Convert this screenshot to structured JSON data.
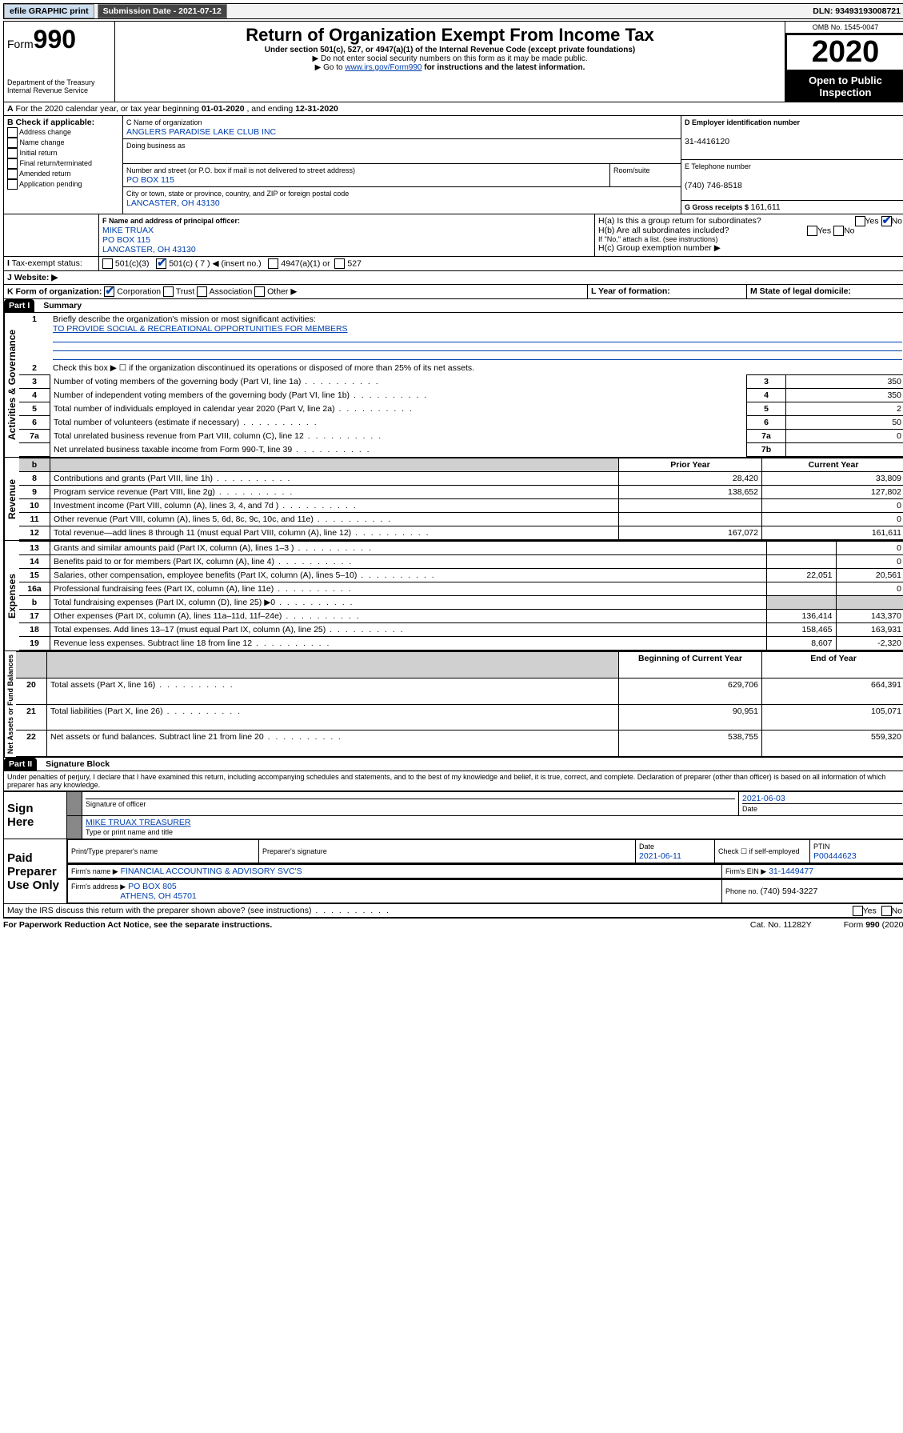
{
  "top": {
    "efile": "efile GRAPHIC print",
    "submission_label": "Submission Date - ",
    "submission_date": "2021-07-12",
    "dln_label": "DLN: ",
    "dln": "93493193008721"
  },
  "header": {
    "form_label": "Form",
    "form_number": "990",
    "dept": "Department of the Treasury\nInternal Revenue Service",
    "title": "Return of Organization Exempt From Income Tax",
    "sub1": "Under section 501(c), 527, or 4947(a)(1) of the Internal Revenue Code (except private foundations)",
    "sub2": "▶ Do not enter social security numbers on this form as it may be made public.",
    "sub3_pre": "▶ Go to ",
    "sub3_link": "www.irs.gov/Form990",
    "sub3_post": " for instructions and the latest information.",
    "omb_label": "OMB No. 1545-0047",
    "year": "2020",
    "open_public": "Open to Public Inspection"
  },
  "A": {
    "text_pre": "For the 2020 calendar year, or tax year beginning ",
    "begin": "01-01-2020",
    "mid": " , and ending ",
    "end": "12-31-2020"
  },
  "B": {
    "label": "B Check if applicable:",
    "items": [
      "Address change",
      "Name change",
      "Initial return",
      "Final return/terminated",
      "Amended return",
      "Application pending"
    ]
  },
  "C": {
    "name_label": "C Name of organization",
    "name": "ANGLERS PARADISE LAKE CLUB INC",
    "dba_label": "Doing business as",
    "street_label": "Number and street (or P.O. box if mail is not delivered to street address)",
    "room_label": "Room/suite",
    "street": "PO BOX 115",
    "city_label": "City or town, state or province, country, and ZIP or foreign postal code",
    "city": "LANCASTER, OH  43130"
  },
  "D": {
    "label": "D Employer identification number",
    "value": "31-4416120"
  },
  "E": {
    "label": "E Telephone number",
    "value": "(740) 746-8518"
  },
  "G": {
    "label": "G Gross receipts $ ",
    "value": "161,611"
  },
  "F": {
    "label": "F  Name and address of principal officer:",
    "name": "MIKE TRUAX",
    "street": "PO BOX 115",
    "city": "LANCASTER, OH  43130"
  },
  "H": {
    "a": "H(a)  Is this a group return for subordinates?",
    "b": "H(b)  Are all subordinates included?",
    "note": "If \"No,\" attach a list. (see instructions)",
    "c": "H(c)  Group exemption number ▶",
    "yes": "Yes",
    "no": "No"
  },
  "I": {
    "label": "Tax-exempt status:",
    "c3": "501(c)(3)",
    "c": "501(c) ( 7 ) ◀ (insert no.)",
    "a1": "4947(a)(1) or",
    "s527": "527"
  },
  "J": {
    "label": "J   Website: ▶"
  },
  "K": {
    "label": "K Form of organization:",
    "corp": "Corporation",
    "trust": "Trust",
    "assoc": "Association",
    "other": "Other ▶"
  },
  "L": {
    "label": "L Year of formation:"
  },
  "M": {
    "label": "M State of legal domicile:"
  },
  "part1": {
    "label": "Part I",
    "title": "Summary",
    "l1": "Briefly describe the organization's mission or most significant activities:",
    "mission": "TO PROVIDE SOCIAL & RECREATIONAL OPPORTUNITIES FOR MEMBERS",
    "l2": "Check this box ▶ ☐  if the organization discontinued its operations or disposed of more than 25% of its net assets.",
    "rows_top": [
      {
        "n": "3",
        "t": "Number of voting members of the governing body (Part VI, line 1a)",
        "b": "3",
        "v": "350"
      },
      {
        "n": "4",
        "t": "Number of independent voting members of the governing body (Part VI, line 1b)",
        "b": "4",
        "v": "350"
      },
      {
        "n": "5",
        "t": "Total number of individuals employed in calendar year 2020 (Part V, line 2a)",
        "b": "5",
        "v": "2"
      },
      {
        "n": "6",
        "t": "Total number of volunteers (estimate if necessary)",
        "b": "6",
        "v": "50"
      },
      {
        "n": "7a",
        "t": "Total unrelated business revenue from Part VIII, column (C), line 12",
        "b": "7a",
        "v": "0"
      },
      {
        "n": "",
        "t": "Net unrelated business taxable income from Form 990-T, line 39",
        "b": "7b",
        "v": ""
      }
    ],
    "col_prior": "Prior Year",
    "col_current": "Current Year",
    "revenue": [
      {
        "n": "8",
        "t": "Contributions and grants (Part VIII, line 1h)",
        "p": "28,420",
        "c": "33,809"
      },
      {
        "n": "9",
        "t": "Program service revenue (Part VIII, line 2g)",
        "p": "138,652",
        "c": "127,802"
      },
      {
        "n": "10",
        "t": "Investment income (Part VIII, column (A), lines 3, 4, and 7d )",
        "p": "",
        "c": "0"
      },
      {
        "n": "11",
        "t": "Other revenue (Part VIII, column (A), lines 5, 6d, 8c, 9c, 10c, and 11e)",
        "p": "",
        "c": "0"
      },
      {
        "n": "12",
        "t": "Total revenue—add lines 8 through 11 (must equal Part VIII, column (A), line 12)",
        "p": "167,072",
        "c": "161,611"
      }
    ],
    "expenses": [
      {
        "n": "13",
        "t": "Grants and similar amounts paid (Part IX, column (A), lines 1–3 )",
        "p": "",
        "c": "0"
      },
      {
        "n": "14",
        "t": "Benefits paid to or for members (Part IX, column (A), line 4)",
        "p": "",
        "c": "0"
      },
      {
        "n": "15",
        "t": "Salaries, other compensation, employee benefits (Part IX, column (A), lines 5–10)",
        "p": "22,051",
        "c": "20,561"
      },
      {
        "n": "16a",
        "t": "Professional fundraising fees (Part IX, column (A), line 11e)",
        "p": "",
        "c": "0"
      },
      {
        "n": "b",
        "t": "Total fundraising expenses (Part IX, column (D), line 25) ▶0",
        "p": "__SHADE__",
        "c": "__SHADE__"
      },
      {
        "n": "17",
        "t": "Other expenses (Part IX, column (A), lines 11a–11d, 11f–24e)",
        "p": "136,414",
        "c": "143,370"
      },
      {
        "n": "18",
        "t": "Total expenses. Add lines 13–17 (must equal Part IX, column (A), line 25)",
        "p": "158,465",
        "c": "163,931"
      },
      {
        "n": "19",
        "t": "Revenue less expenses. Subtract line 18 from line 12",
        "p": "8,607",
        "c": "-2,320"
      }
    ],
    "col_begin": "Beginning of Current Year",
    "col_end": "End of Year",
    "net": [
      {
        "n": "20",
        "t": "Total assets (Part X, line 16)",
        "p": "629,706",
        "c": "664,391"
      },
      {
        "n": "21",
        "t": "Total liabilities (Part X, line 26)",
        "p": "90,951",
        "c": "105,071"
      },
      {
        "n": "22",
        "t": "Net assets or fund balances. Subtract line 21 from line 20",
        "p": "538,755",
        "c": "559,320"
      }
    ],
    "vlabels": {
      "gov": "Activities & Governance",
      "rev": "Revenue",
      "exp": "Expenses",
      "net": "Net Assets or Fund Balances"
    }
  },
  "part2": {
    "label": "Part II",
    "title": "Signature Block",
    "perjury": "Under penalties of perjury, I declare that I have examined this return, including accompanying schedules and statements, and to the best of my knowledge and belief, it is true, correct, and complete. Declaration of preparer (other than officer) is based on all information of which preparer has any knowledge.",
    "sign_here": "Sign Here",
    "sig_officer": "Signature of officer",
    "sig_date": "2021-06-03",
    "date_label": "Date",
    "officer_name": "MIKE TRUAX TREASURER",
    "type_name": "Type or print name and title",
    "paid": "Paid Preparer Use Only",
    "prep_name_label": "Print/Type preparer's name",
    "prep_sig_label": "Preparer's signature",
    "prep_date_label": "Date",
    "prep_date": "2021-06-11",
    "check_self": "Check ☐ if self-employed",
    "ptin_label": "PTIN",
    "ptin": "P00444623",
    "firm_name_label": "Firm's name    ▶",
    "firm_name": "FINANCIAL ACCOUNTING & ADVISORY SVC'S",
    "firm_ein_label": "Firm's EIN ▶",
    "firm_ein": "31-1449477",
    "firm_addr_label": "Firm's address ▶",
    "firm_addr1": "PO BOX 805",
    "firm_addr2": "ATHENS, OH  45701",
    "phone_label": "Phone no. ",
    "phone": "(740) 594-3227",
    "discuss": "May the IRS discuss this return with the preparer shown above? (see instructions)",
    "yes": "Yes",
    "no": "No"
  },
  "footer": {
    "pra": "For Paperwork Reduction Act Notice, see the separate instructions.",
    "cat": "Cat. No. 11282Y",
    "form": "Form 990 (2020)"
  }
}
